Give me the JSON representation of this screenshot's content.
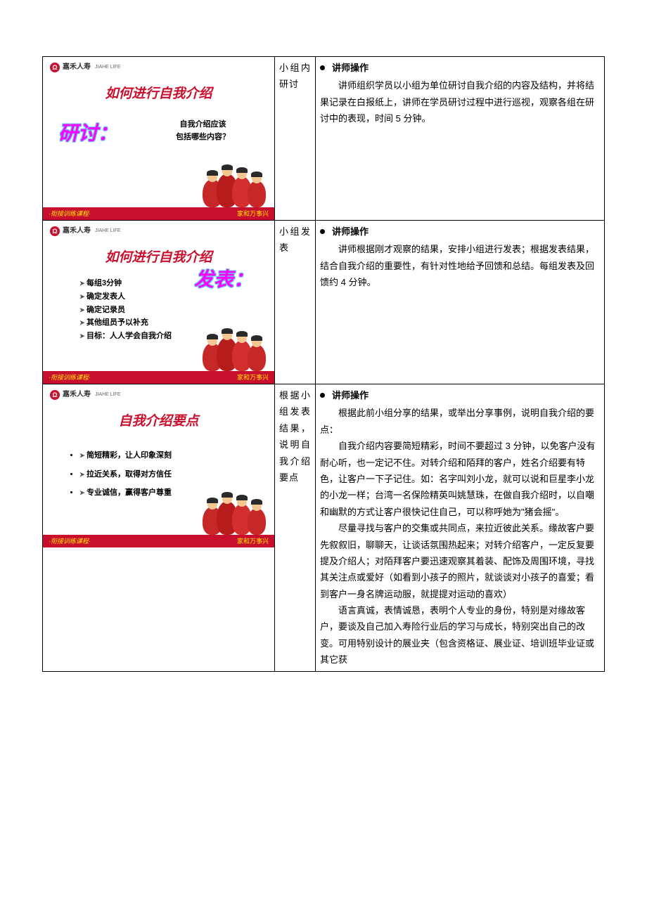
{
  "logo": {
    "brand": "嘉禾人寿",
    "sub": "JIAHE LIFE",
    "icon": "Ω"
  },
  "footer": {
    "left": "·衔接训练课程·",
    "right": "家和万事兴"
  },
  "colors": {
    "brand_red": "#c8102e",
    "callout_magenta": "#ff00ff",
    "callout_outline": "#66ccee",
    "footer_yellow": "#ffe600",
    "text": "#222222",
    "border": "#000000",
    "bg": "#ffffff"
  },
  "rows": [
    {
      "slide": {
        "title": "如何进行自我介绍",
        "callout": "研讨：",
        "callout_pos": "left",
        "body_lines": [
          "自我介绍应该",
          "包括哪些内容？"
        ]
      },
      "topic": "小组内研讨",
      "op_heading": "讲师操作",
      "content": "讲师组织学员以小组为单位研讨自我介绍的内容及结构，并将结果记录在白报纸上，讲师在学员研讨过程中进行巡视，观察各组在研讨中的表现，时间 5 分钟。"
    },
    {
      "slide": {
        "title": "如何进行自我介绍",
        "callout": "发表：",
        "callout_pos": "right",
        "list": [
          "每组3分钟",
          "确定发表人",
          "确定记录员",
          "其他组员予以补充",
          "目标：人人学会自我介绍"
        ]
      },
      "topic": "小组发表",
      "op_heading": "讲师操作",
      "content": "讲师根据刚才观察的结果，安排小组进行发表；根据发表结果，结合自我介绍的重要性，有针对性地给予回馈和总结。每组发表及回馈约 4 分钟。"
    },
    {
      "slide": {
        "title": "自我介绍要点",
        "points": [
          "简短精彩，让人印象深刻",
          "拉近关系，取得对方信任",
          "专业诚信，赢得客户尊重"
        ]
      },
      "topic": "根据小组发表结果，说明自我介绍要点",
      "op_heading": "讲师操作",
      "paragraphs": [
        "根据此前小组分享的结果，或举出分享事例，说明自我介绍的要点：",
        "自我介绍内容要简短精彩，时间不要超过 3 分钟，以免客户没有耐心听，也一定记不住。对转介绍和陌拜的客户，姓名介绍要有特色，让客户一下子记住。如：名字叫刘小龙，就可以说和巨星李小龙的小龙一样；台湾一名保险精英叫姚慧珠，在做自我介绍时，以自嘲和幽默的方式让客户很快记住自己，可以称呼她为\"猪会摇\"。",
        "尽量寻找与客户的交集或共同点，来拉近彼此关系。缘故客户要先叙叙旧，聊聊天，让谈话氛围热起来；对转介绍客户，一定反复要提及介绍人；对陌拜客户要迅速观察其着装、配饰及周围环境，寻找其关注点或爱好（如看到小孩子的照片，就谈谈对小孩子的喜爱；看到客户一身名牌运动服，就提提对运动的喜欢）",
        "语言真诚，表情诚恳，表明个人专业的身份，特别是对缘故客户，要谈及自己加入寿险行业后的学习与成长，特别突出自己的改变。可用特别设计的展业夹（包含资格证、展业证、培训班毕业证或其它获"
      ]
    }
  ]
}
